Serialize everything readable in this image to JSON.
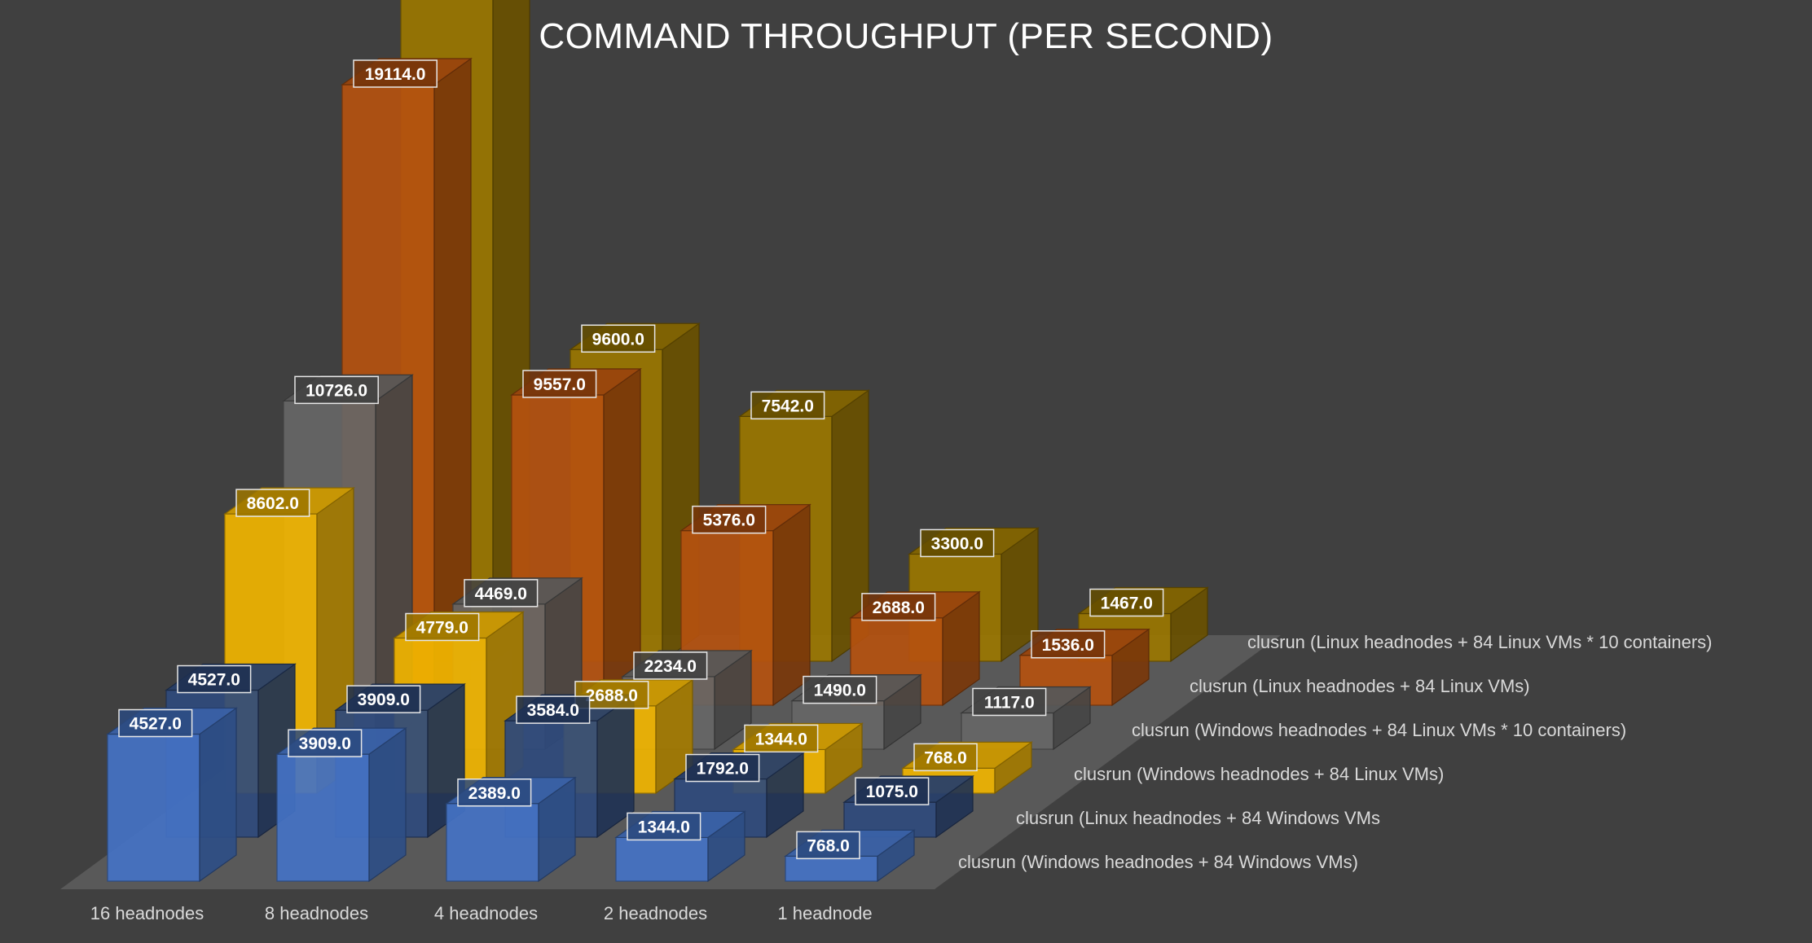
{
  "chart_data": {
    "type": "bar",
    "variant": "3d-column",
    "title": "COMMAND THROUGHPUT (PER SECOND)",
    "categories": [
      "16 headnodes",
      "8 headnodes",
      "4 headnodes",
      "2 headnodes",
      "1 headnode"
    ],
    "series": [
      {
        "name": "clusrun (Windows headnodes + 84 Windows VMs)",
        "color": "#4472C4",
        "values": [
          4527.0,
          3909.0,
          2389.0,
          1344.0,
          768.0
        ]
      },
      {
        "name": "clusrun (Linux headnodes + 84 Windows VMs",
        "color": "#2F4A7C",
        "values": [
          4527.0,
          3909.0,
          3584.0,
          1792.0,
          1075.0
        ]
      },
      {
        "name": "clusrun (Windows headnodes + 84 Linux VMs)",
        "color": "#F0B400",
        "values": [
          8602.0,
          4779.0,
          2688.0,
          1344.0,
          768.0
        ]
      },
      {
        "name": "clusrun (Windows headnodes + 84 Linux VMs * 10 containers)",
        "color": "#666666",
        "values": [
          10726.0,
          4469.0,
          2234.0,
          1490.0,
          1117.0
        ]
      },
      {
        "name": "clusrun (Linux headnodes + 84 Linux VMs)",
        "color": "#B4510F",
        "values": [
          19114.0,
          9557.0,
          5376.0,
          2688.0,
          1536.0
        ]
      },
      {
        "name": "clusrun (Linux headnodes + 84 Linux VMs * 10 containers)",
        "color": "#9A7600",
        "values": [
          21120.0,
          9600.0,
          7542.0,
          3300.0,
          1467.0
        ]
      }
    ],
    "ylim": [
      0,
      21120
    ],
    "grid": false,
    "legend": "none",
    "data_labels": true
  }
}
